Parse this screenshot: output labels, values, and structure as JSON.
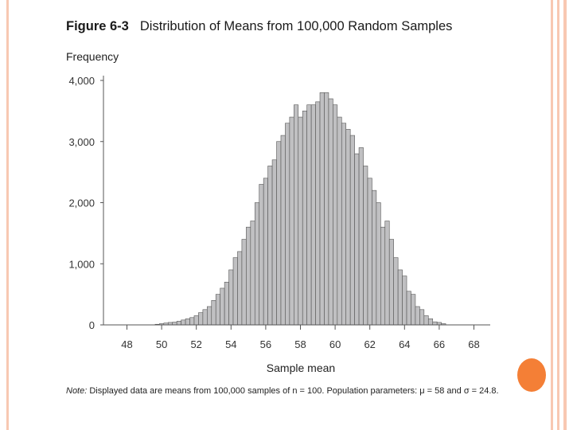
{
  "slide": {
    "figure_number": "Figure 6-3",
    "figure_title": "Distribution of Means from 100,000 Random Samples",
    "note_label": "Note:",
    "note_text": "Displayed data are means from 100,000 samples of n = 100. Population parameters: μ = 58 and σ = 24.8.",
    "colors": {
      "stripe": "#f8c8b2",
      "accent_dot": "#f47f36",
      "bar_fill": "#c0c0c2",
      "bar_stroke": "#555555"
    }
  },
  "chart_data": {
    "type": "bar",
    "title": "Distribution of Means from 100,000 Random Samples",
    "xlabel": "Sample mean",
    "ylabel": "Frequency",
    "xlim": [
      47.5,
      69
    ],
    "ylim": [
      0,
      4000
    ],
    "xticks": [
      48,
      50,
      52,
      54,
      56,
      58,
      60,
      62,
      64,
      66,
      68
    ],
    "yticks": [
      0,
      1000,
      2000,
      3000,
      4000
    ],
    "ytick_labels": [
      "0",
      "1,000",
      "2,000",
      "3,000",
      "4,000"
    ],
    "bin_width": 0.25,
    "x": [
      49.75,
      50.0,
      50.25,
      50.5,
      50.75,
      51.0,
      51.25,
      51.5,
      51.75,
      52.0,
      52.25,
      52.5,
      52.75,
      53.0,
      53.25,
      53.5,
      53.75,
      54.0,
      54.25,
      54.5,
      54.75,
      55.0,
      55.25,
      55.5,
      55.75,
      56.0,
      56.25,
      56.5,
      56.75,
      57.0,
      57.25,
      57.5,
      57.75,
      58.0,
      58.25,
      58.5,
      58.75,
      59.0,
      59.25,
      59.5,
      59.75,
      60.0,
      60.25,
      60.5,
      60.75,
      61.0,
      61.25,
      61.5,
      61.75,
      62.0,
      62.25,
      62.5,
      62.75,
      63.0,
      63.25,
      63.5,
      63.75,
      64.0,
      64.25,
      64.5,
      64.75,
      65.0,
      65.25,
      65.5,
      65.75,
      66.0,
      66.25
    ],
    "values": [
      10,
      20,
      30,
      40,
      45,
      60,
      80,
      100,
      120,
      150,
      200,
      250,
      300,
      400,
      500,
      600,
      700,
      900,
      1100,
      1200,
      1400,
      1600,
      1700,
      2000,
      2300,
      2400,
      2600,
      2700,
      3000,
      3100,
      3300,
      3400,
      3600,
      3400,
      3500,
      3600,
      3600,
      3650,
      3800,
      3800,
      3700,
      3600,
      3400,
      3300,
      3200,
      3100,
      2800,
      2900,
      2600,
      2400,
      2200,
      2000,
      1600,
      1700,
      1400,
      1100,
      900,
      800,
      550,
      500,
      300,
      250,
      150,
      100,
      50,
      40,
      20
    ]
  }
}
